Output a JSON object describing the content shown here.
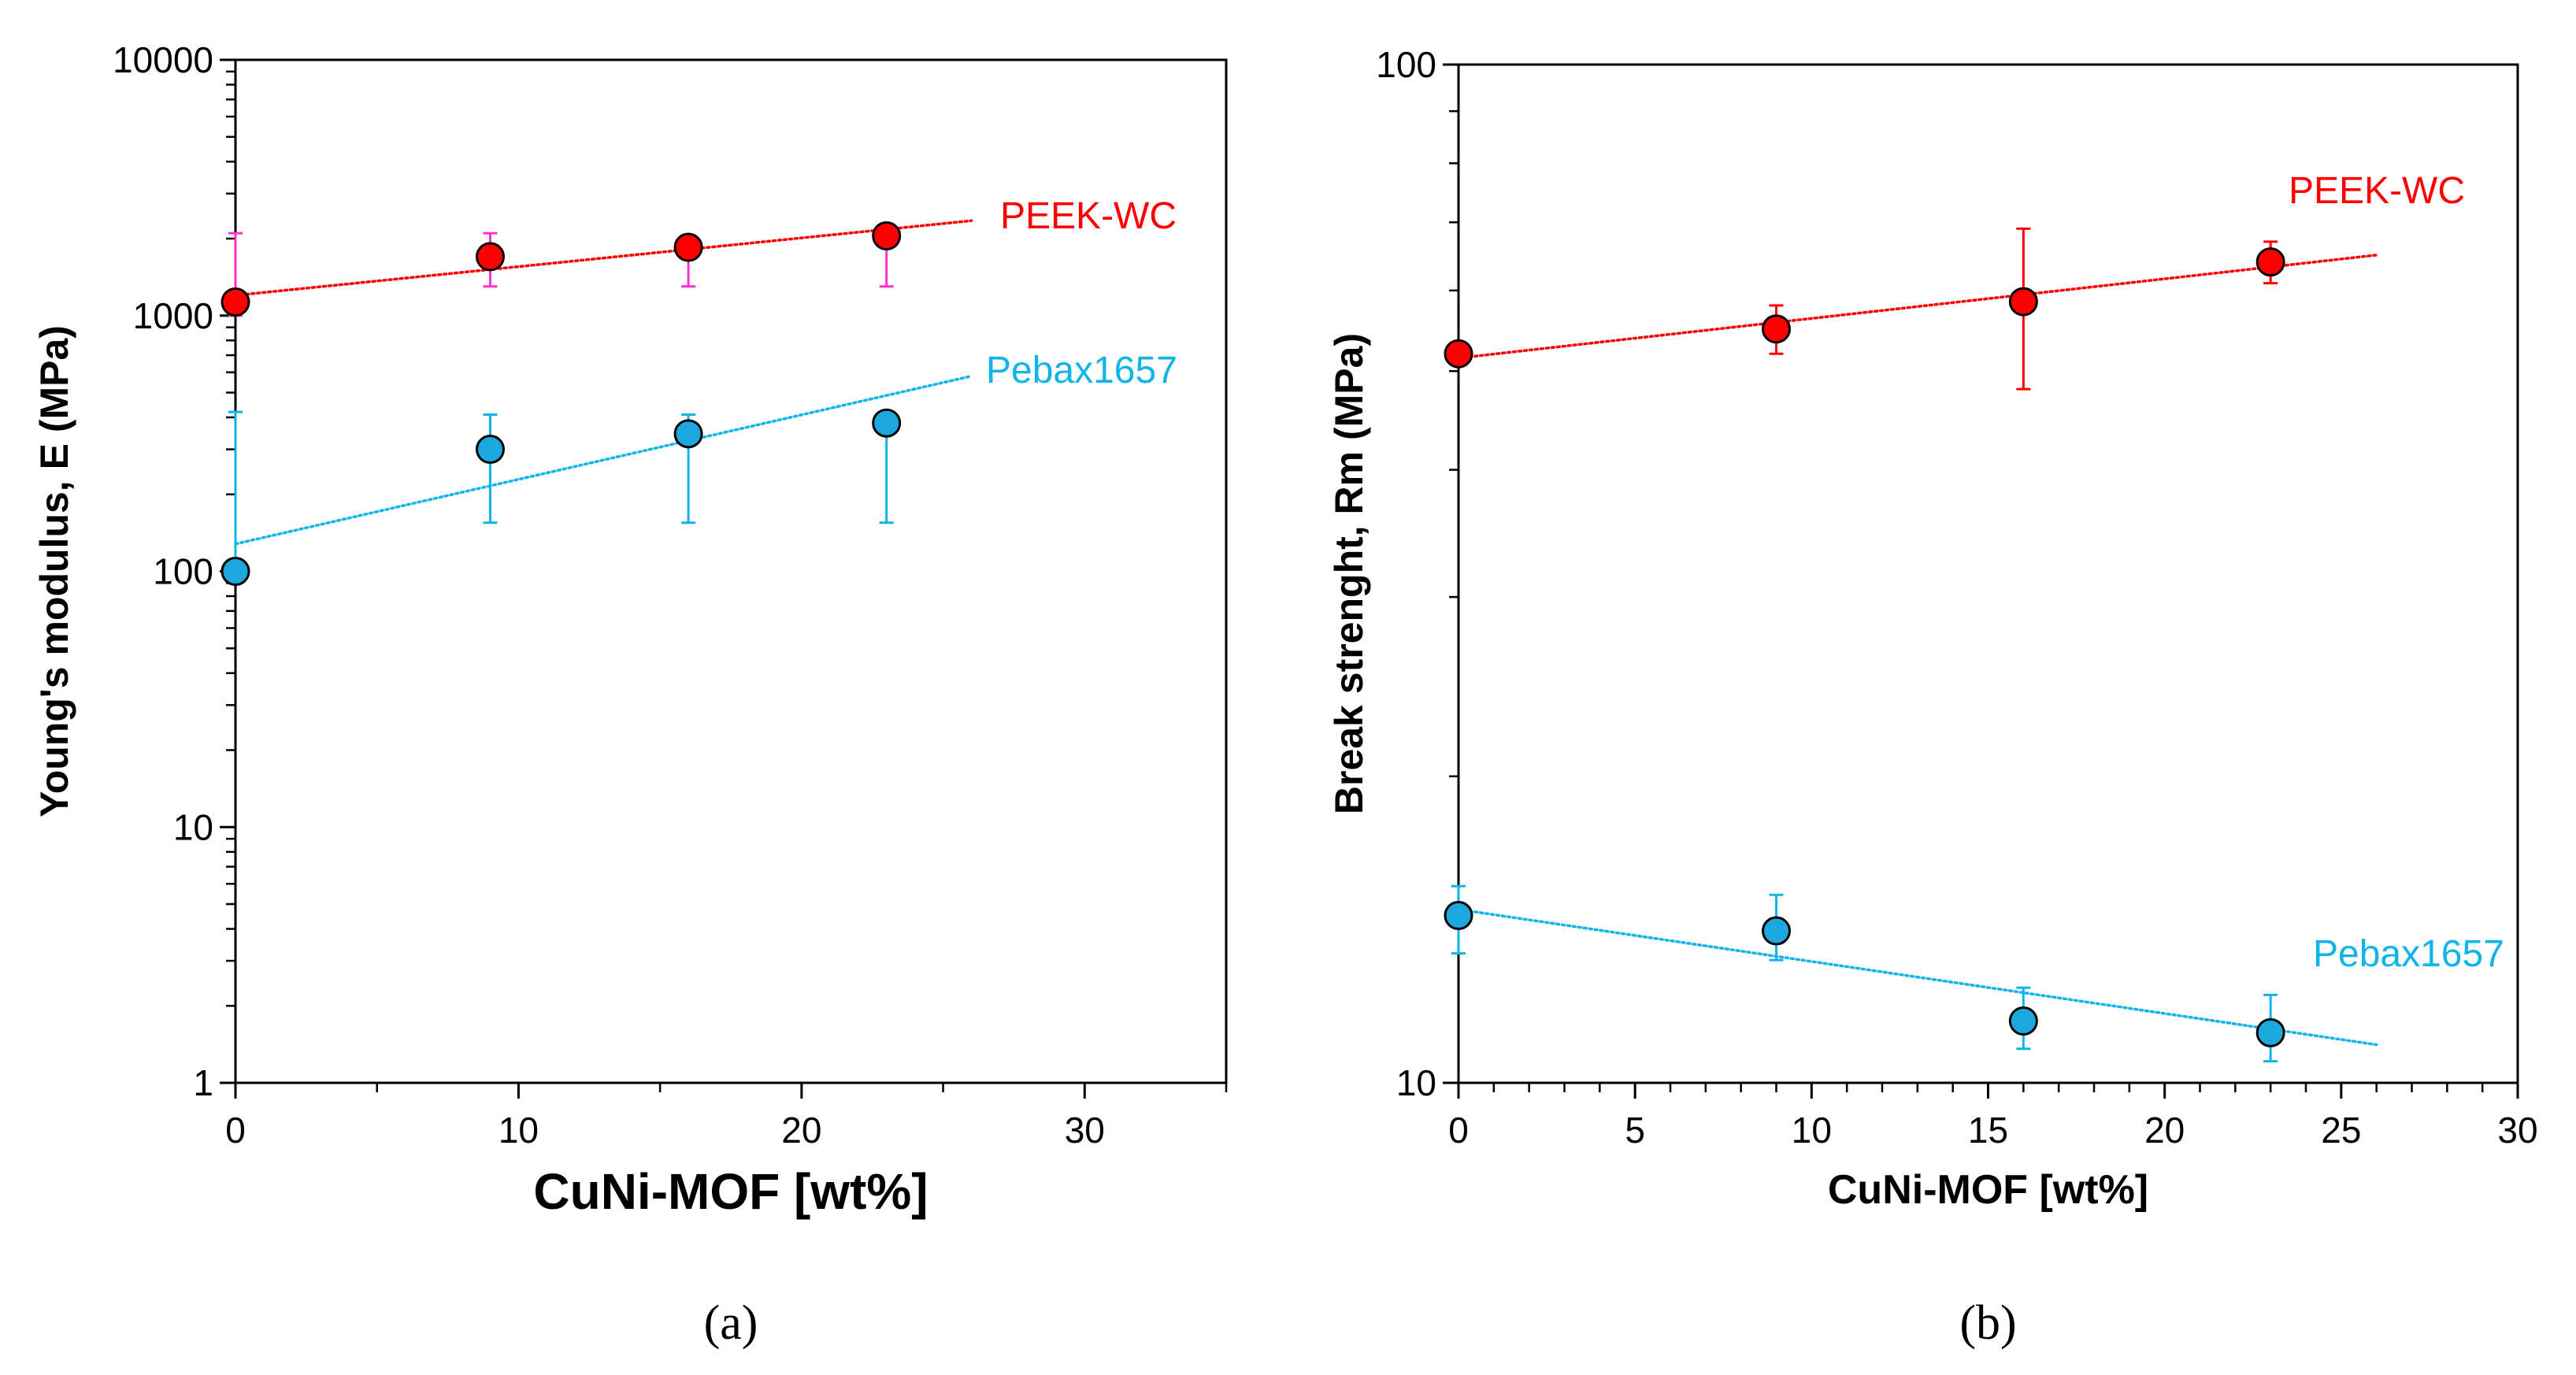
{
  "chart_data": [
    {
      "type": "scatter",
      "panel_label": "(a)",
      "title": "",
      "xlabel": "CuNi-MOF [wt%]",
      "ylabel": "Young's modulus, E (MPa)",
      "yscale": "log",
      "xlim": [
        0,
        35
      ],
      "ylim": [
        1,
        10000
      ],
      "xticks": [
        0,
        10,
        20,
        30
      ],
      "xtick_labels": [
        "0",
        "10",
        "20",
        "30"
      ],
      "yticks": [
        1,
        10,
        100,
        1000,
        10000
      ],
      "ytick_labels": [
        "1",
        "10",
        "100",
        "1000",
        "10000"
      ],
      "series": [
        {
          "name": "PEEK-WC",
          "label_color": "#ff0000",
          "marker_color": "#ff0000",
          "error_color": "#ff33cc",
          "trend_color": "#ff0000",
          "x": [
            0,
            9,
            16,
            23
          ],
          "y": [
            1130,
            1700,
            1850,
            2050
          ],
          "err_low": [
            1000,
            1300,
            1300,
            1300
          ],
          "err_high": [
            2100,
            2100,
            2050,
            2100
          ],
          "trend": {
            "x": [
              0,
              26
            ],
            "y": [
              1200,
              2350
            ]
          }
        },
        {
          "name": "Pebax1657",
          "label_color": "#0fb5e8",
          "marker_color": "#1ca7de",
          "error_color": "#0fb5e8",
          "trend_color": "#0fb5e8",
          "x": [
            0,
            9,
            16,
            23
          ],
          "y": [
            100,
            300,
            345,
            380
          ],
          "err_low": [
            100,
            155,
            155,
            155
          ],
          "err_high": [
            420,
            410,
            410,
            400
          ],
          "trend": {
            "x": [
              0,
              26
            ],
            "y": [
              128,
              580
            ]
          }
        }
      ]
    },
    {
      "type": "scatter",
      "panel_label": "(b)",
      "title": "",
      "xlabel": "CuNi-MOF [wt%]",
      "ylabel": "Break strenght, Rm (MPa)",
      "yscale": "log",
      "xlim": [
        0,
        30
      ],
      "ylim": [
        10,
        100
      ],
      "xticks": [
        0,
        5,
        10,
        15,
        20,
        25,
        30
      ],
      "xtick_labels": [
        "0",
        "5",
        "10",
        "15",
        "20",
        "25",
        "30"
      ],
      "yticks": [
        10,
        100
      ],
      "ytick_labels": [
        "10",
        "100"
      ],
      "series": [
        {
          "name": "PEEK-WC",
          "label_color": "#ff0000",
          "marker_color": "#ff0000",
          "error_color": "#ff0000",
          "trend_color": "#ff0000",
          "x": [
            0,
            9,
            16,
            23
          ],
          "y": [
            52,
            55,
            58.5,
            64
          ],
          "err_low": [
            52,
            52,
            48,
            61
          ],
          "err_high": [
            52,
            58,
            69,
            67
          ],
          "trend": {
            "x": [
              0,
              26
            ],
            "y": [
              51.5,
              65
            ]
          }
        },
        {
          "name": "Pebax1657",
          "label_color": "#0fb5e8",
          "marker_color": "#1ca7de",
          "error_color": "#0fb5e8",
          "trend_color": "#0fb5e8",
          "x": [
            0,
            9,
            16,
            23
          ],
          "y": [
            14.6,
            14.1,
            11.5,
            11.2
          ],
          "err_low": [
            13.4,
            13.2,
            10.8,
            10.5
          ],
          "err_high": [
            15.6,
            15.3,
            12.4,
            12.2
          ],
          "trend": {
            "x": [
              0,
              26
            ],
            "y": [
              14.8,
              10.9
            ]
          }
        }
      ]
    }
  ]
}
